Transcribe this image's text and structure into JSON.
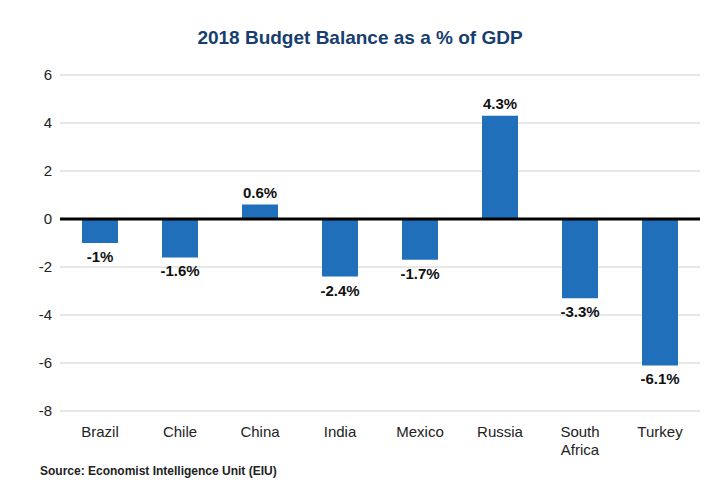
{
  "chart_data": {
    "type": "bar",
    "title": "2018 Budget Balance as a % of GDP",
    "source": "Source: Economist Intelligence Unit (EIU)",
    "categories": [
      "Brazil",
      "Chile",
      "China",
      "India",
      "Mexico",
      "Russia",
      "South Africa",
      "Turkey"
    ],
    "values": [
      -1,
      -1.6,
      0.6,
      -2.4,
      -1.7,
      4.3,
      -3.3,
      -6.1
    ],
    "value_labels": [
      "-1%",
      "-1.6%",
      "0.6%",
      "-2.4%",
      "-1.7%",
      "4.3%",
      "-3.3%",
      "-6.1%"
    ],
    "color": "#1f6fba",
    "ylim": [
      -8,
      6
    ],
    "yticks": [
      -8,
      -6,
      -4,
      -2,
      0,
      2,
      4,
      6
    ],
    "grid": true,
    "data_labels": true
  }
}
